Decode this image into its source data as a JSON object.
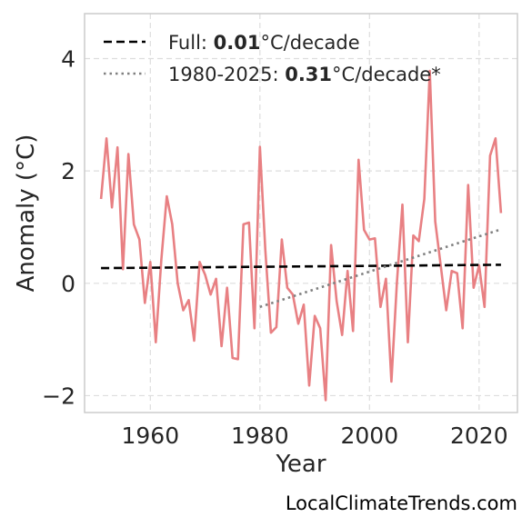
{
  "chart_data": {
    "type": "line",
    "xlabel": "Year",
    "ylabel": "Anomaly (°C)",
    "xlim": [
      1948,
      2027
    ],
    "ylim": [
      -2.3,
      4.8
    ],
    "xticks": [
      1960,
      1980,
      2000,
      2020
    ],
    "yticks": [
      -2,
      0,
      2,
      4
    ],
    "ytick_labels": [
      "−2",
      "0",
      "2",
      "4"
    ],
    "grid": true,
    "legend_position": "top-left",
    "series": [
      {
        "style": "solid",
        "color": "#e88083",
        "x": [
          1951,
          1952,
          1953,
          1954,
          1955,
          1956,
          1957,
          1958,
          1959,
          1960,
          1961,
          1962,
          1963,
          1964,
          1965,
          1966,
          1967,
          1968,
          1969,
          1970,
          1971,
          1972,
          1973,
          1974,
          1975,
          1976,
          1977,
          1978,
          1979,
          1980,
          1981,
          1982,
          1983,
          1984,
          1985,
          1986,
          1987,
          1988,
          1989,
          1990,
          1991,
          1992,
          1993,
          1994,
          1995,
          1996,
          1997,
          1998,
          1999,
          2000,
          2001,
          2002,
          2003,
          2004,
          2005,
          2006,
          2007,
          2008,
          2009,
          2010,
          2011,
          2012,
          2013,
          2014,
          2015,
          2016,
          2017,
          2018,
          2019,
          2020,
          2021,
          2022,
          2023,
          2024
        ],
        "y": [
          1.5,
          2.58,
          1.35,
          2.42,
          0.25,
          2.3,
          1.05,
          0.78,
          -0.35,
          0.38,
          -1.05,
          0.42,
          1.55,
          1.05,
          0.0,
          -0.48,
          -0.3,
          -1.02,
          0.38,
          0.15,
          -0.2,
          0.08,
          -1.12,
          -0.08,
          -1.33,
          -1.35,
          1.05,
          1.08,
          -0.8,
          2.43,
          0.58,
          -0.88,
          -0.78,
          0.78,
          -0.08,
          -0.2,
          -0.72,
          -0.38,
          -1.82,
          -0.58,
          -0.8,
          -2.08,
          0.68,
          -0.32,
          -0.92,
          0.22,
          -0.85,
          2.2,
          0.95,
          0.78,
          0.8,
          -0.42,
          0.08,
          -1.75,
          0.0,
          1.4,
          -1.05,
          0.85,
          0.75,
          1.5,
          3.78,
          1.1,
          0.32,
          -0.48,
          0.22,
          0.18,
          -0.8,
          1.75,
          -0.08,
          0.32,
          -0.42,
          2.27,
          2.58,
          1.25
        ]
      },
      {
        "name": "Full",
        "label_prefix": "Full: ",
        "rate": "0.01",
        "unit": "°C/decade",
        "style": "dashed",
        "color": "#000000",
        "x": [
          1951,
          2024
        ],
        "y": [
          0.27,
          0.33
        ]
      },
      {
        "name": "1980-2025",
        "label_prefix": "1980-2025: ",
        "rate": "0.31",
        "unit": "°C/decade*",
        "style": "dotted",
        "color": "#808080",
        "x": [
          1980,
          2024
        ],
        "y": [
          -0.42,
          0.96
        ]
      }
    ]
  },
  "credit": "LocalClimateTrends.com"
}
